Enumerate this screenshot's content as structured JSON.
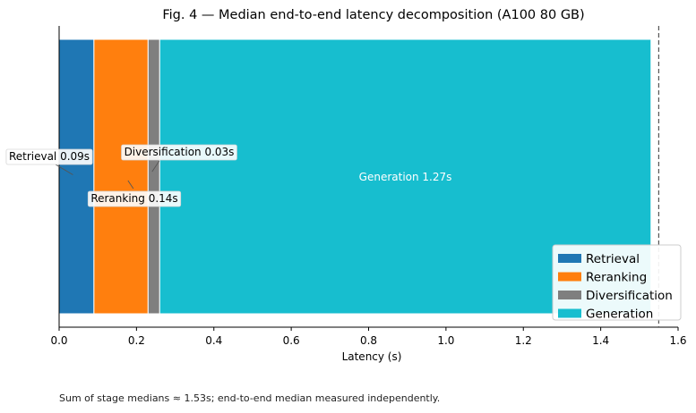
{
  "chart_data": {
    "type": "bar",
    "orientation": "horizontal-stacked",
    "title": "Fig. 4 — Median end-to-end latency decomposition (A100 80 GB)",
    "xlabel": "Latency (s)",
    "ylabel": "",
    "xlim": [
      0,
      1.6
    ],
    "xticks": [
      0.0,
      0.2,
      0.4,
      0.6,
      0.8,
      1.0,
      1.2,
      1.4,
      1.6
    ],
    "xtick_labels": [
      "0.0",
      "0.2",
      "0.4",
      "0.6",
      "0.8",
      "1.0",
      "1.2",
      "1.4",
      "1.6"
    ],
    "series": [
      {
        "name": "Retrieval",
        "value": 0.09,
        "color": "#1f77b4",
        "label": "Retrieval 0.09s"
      },
      {
        "name": "Reranking",
        "value": 0.14,
        "color": "#ff7f0e",
        "label": "Reranking 0.14s"
      },
      {
        "name": "Diversification",
        "value": 0.03,
        "color": "#7f7f7f",
        "label": "Diversification 0.03s"
      },
      {
        "name": "Generation",
        "value": 1.27,
        "color": "#17becf",
        "label": "Generation 1.27s"
      }
    ],
    "reference_line": {
      "value": 1.55,
      "style": "dashed",
      "color": "#555555"
    },
    "legend_position": "bottom-right"
  },
  "caption": "Sum of stage medians ≈ 1.53s; end-to-end median measured independently."
}
